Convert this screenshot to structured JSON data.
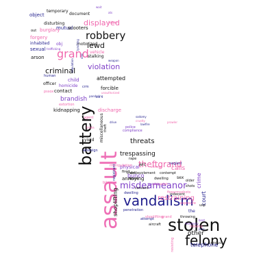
{
  "colors": {
    "black": "#111111",
    "navy": "#1f1d8c",
    "purple": "#7e3fc7",
    "violet": "#a23fcf",
    "pink": "#f067ad",
    "rose": "#ee6fb6"
  },
  "words": [
    {
      "text": "assault",
      "color": "rose"
    },
    {
      "text": "battery",
      "color": "black"
    },
    {
      "text": "stolen",
      "color": "black"
    },
    {
      "text": "vandalism",
      "color": "navy"
    },
    {
      "text": "felony",
      "color": "black"
    },
    {
      "text": "robbery",
      "color": "black"
    },
    {
      "text": "grand",
      "color": "pink"
    },
    {
      "text": "theftgrand",
      "color": "pink"
    },
    {
      "text": "misdeameanor",
      "color": "purple"
    },
    {
      "text": "displayed",
      "color": "pink"
    },
    {
      "text": "violation",
      "color": "purple"
    },
    {
      "text": "criminal",
      "color": "black"
    },
    {
      "text": "lewd",
      "color": "black"
    },
    {
      "text": "threats",
      "color": "black"
    },
    {
      "text": "restraining",
      "color": "pink"
    },
    {
      "text": "shoplifting",
      "color": "black"
    },
    {
      "text": "brandish",
      "color": "purple"
    },
    {
      "text": "trespassing",
      "color": "black"
    },
    {
      "text": "calls",
      "color": "pink"
    },
    {
      "text": "bunco",
      "color": "purple"
    },
    {
      "text": "attempted",
      "color": "black"
    },
    {
      "text": "other",
      "color": "black"
    },
    {
      "text": "telephone",
      "color": "navy"
    },
    {
      "text": "crime",
      "color": "purple"
    },
    {
      "text": "court",
      "color": "navy"
    },
    {
      "text": "child",
      "color": "purple"
    },
    {
      "text": "forcible",
      "color": "black"
    },
    {
      "text": "kidnapping",
      "color": "black"
    },
    {
      "text": "annoying",
      "color": "black"
    },
    {
      "text": "contact",
      "color": "black"
    },
    {
      "text": "discharge",
      "color": "pink"
    },
    {
      "text": "officer",
      "color": "black"
    },
    {
      "text": "homicide",
      "color": "purple"
    },
    {
      "text": "physical",
      "color": "purple"
    },
    {
      "text": "arson",
      "color": "black"
    },
    {
      "text": "sexual",
      "color": "navy"
    },
    {
      "text": "burglary",
      "color": "pink"
    },
    {
      "text": "forgery",
      "color": "pink"
    },
    {
      "text": "mutual",
      "color": "navy"
    },
    {
      "text": "scooters",
      "color": "black"
    },
    {
      "text": "document",
      "color": "black"
    },
    {
      "text": "temporary",
      "color": "black"
    },
    {
      "text": "object",
      "color": "navy"
    },
    {
      "text": "disturbing",
      "color": "black"
    },
    {
      "text": "inhabited",
      "color": "navy"
    },
    {
      "text": "motorized",
      "color": "black"
    },
    {
      "text": "stalking",
      "color": "black"
    },
    {
      "text": "vehicle",
      "color": "pink"
    },
    {
      "text": "obj",
      "color": "purple"
    },
    {
      "text": "out",
      "color": "black"
    },
    {
      "text": "sex",
      "color": "black"
    },
    {
      "text": "human",
      "color": "navy"
    },
    {
      "text": "extortion",
      "color": "pink"
    },
    {
      "text": "pssox",
      "color": "pink"
    },
    {
      "text": "crm",
      "color": "navy"
    },
    {
      "text": "wic",
      "color": "black"
    },
    {
      "text": "rape",
      "color": "black"
    },
    {
      "text": "fired",
      "color": "black"
    },
    {
      "text": "compliance",
      "color": "purple"
    },
    {
      "text": "police",
      "color": "purple"
    },
    {
      "text": "train",
      "color": "pink"
    },
    {
      "text": "agent",
      "color": "pink"
    },
    {
      "text": "wforeign",
      "color": "navy"
    },
    {
      "text": "yield",
      "color": "black"
    },
    {
      "text": "manipulation",
      "color": "pink"
    },
    {
      "text": "contempt",
      "color": "black"
    },
    {
      "text": "neglect",
      "color": "navy"
    },
    {
      "text": "embezzlement",
      "color": "black"
    },
    {
      "text": "consent",
      "color": "black"
    },
    {
      "text": "abuse",
      "color": "black"
    },
    {
      "text": "dwelling",
      "color": "black"
    },
    {
      "text": "older",
      "color": "black"
    },
    {
      "text": "bikes",
      "color": "pink"
    },
    {
      "text": "firearmsshots",
      "color": "pink"
    },
    {
      "text": "indecent",
      "color": "black"
    },
    {
      "text": "shots",
      "color": "black"
    },
    {
      "text": "exposure",
      "color": "pink"
    },
    {
      "text": "penetration",
      "color": "navy"
    },
    {
      "text": "shoplifting",
      "color": "pink"
    },
    {
      "text": "grand",
      "color": "pink"
    },
    {
      "text": "throwing",
      "color": "black"
    },
    {
      "text": "attempt",
      "color": "navy"
    },
    {
      "text": "aircraft",
      "color": "black"
    },
    {
      "text": "the",
      "color": "navy"
    },
    {
      "text": "usp",
      "color": "black"
    },
    {
      "text": "resisting",
      "color": "pink"
    },
    {
      "text": "moving",
      "color": "pink"
    },
    {
      "text": "conduct",
      "color": "black"
    },
    {
      "text": "miscellaneous",
      "color": "black"
    },
    {
      "text": "theft",
      "color": "black"
    },
    {
      "text": "registrant",
      "color": "navy"
    },
    {
      "text": "dwelling",
      "color": "navy"
    },
    {
      "text": "child",
      "color": "black"
    },
    {
      "text": "sodomy",
      "color": "navy"
    },
    {
      "text": "cruelty",
      "color": "pink"
    },
    {
      "text": "fire",
      "color": "navy"
    },
    {
      "text": "law",
      "color": "navy"
    },
    {
      "text": "drive",
      "color": "navy"
    },
    {
      "text": "lynching",
      "color": "navy"
    },
    {
      "text": "oral",
      "color": "navy"
    },
    {
      "text": "copulation",
      "color": "navy"
    },
    {
      "text": "pandering",
      "color": "navy"
    },
    {
      "text": "aid",
      "color": "navy"
    },
    {
      "text": "kidnap",
      "color": "pink"
    },
    {
      "text": "offender",
      "color": "pink"
    },
    {
      "text": "pickpocket",
      "color": "pink"
    },
    {
      "text": "trafficking",
      "color": "purple"
    },
    {
      "text": "weapon",
      "color": "navy"
    },
    {
      "text": "unauthorized",
      "color": "pink"
    },
    {
      "text": "peeping",
      "color": "purple"
    },
    {
      "text": "recklessly",
      "color": "purple"
    },
    {
      "text": "boat",
      "color": "purple"
    },
    {
      "text": "wait",
      "color": "purple"
    },
    {
      "text": "prowler",
      "color": "pink"
    },
    {
      "text": "ats",
      "color": "purple"
    },
    {
      "text": "pers",
      "color": "navy"
    }
  ]
}
